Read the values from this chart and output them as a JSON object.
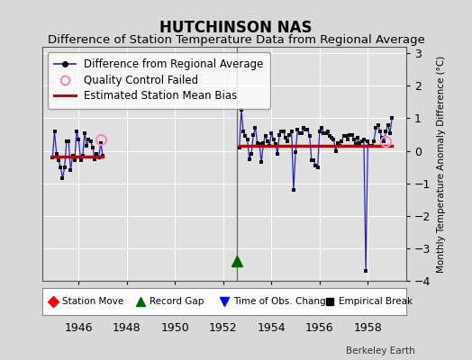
{
  "title": "HUTCHINSON NAS",
  "subtitle": "Difference of Station Temperature Data from Regional Average",
  "ylabel": "Monthly Temperature Anomaly Difference (°C)",
  "background_color": "#d8d8d8",
  "plot_bg_color": "#e0e0e0",
  "xlim": [
    1944.5,
    1959.58
  ],
  "ylim": [
    -4.0,
    3.2
  ],
  "yticks": [
    -4,
    -3,
    -2,
    -1,
    0,
    1,
    2,
    3
  ],
  "xticks": [
    1946,
    1948,
    1950,
    1952,
    1954,
    1956,
    1958
  ],
  "segment1_x": [
    1944.917,
    1945.0,
    1945.083,
    1945.167,
    1945.25,
    1945.333,
    1945.417,
    1945.5,
    1945.583,
    1945.667,
    1945.75,
    1945.833,
    1945.917,
    1946.0,
    1946.083,
    1946.167,
    1946.25,
    1946.333,
    1946.417,
    1946.5,
    1946.583,
    1946.667,
    1946.75,
    1946.833,
    1946.917,
    1947.0
  ],
  "segment1_y": [
    -0.2,
    0.6,
    -0.1,
    -0.3,
    -0.5,
    -0.85,
    -0.5,
    0.3,
    0.3,
    -0.6,
    -0.15,
    -0.3,
    0.6,
    0.35,
    -0.3,
    -0.15,
    0.55,
    0.15,
    0.35,
    0.3,
    0.1,
    -0.25,
    -0.1,
    -0.2,
    0.25,
    -0.15
  ],
  "segment1_bias": -0.18,
  "qc_failed_x1": [
    1946.917
  ],
  "qc_failed_y1": [
    0.35
  ],
  "gap_marker_x": 1952.583,
  "gap_marker_y": -3.4,
  "segment2_x": [
    1952.667,
    1952.75,
    1952.833,
    1952.917,
    1953.0,
    1953.083,
    1953.167,
    1953.25,
    1953.333,
    1953.417,
    1953.5,
    1953.583,
    1953.667,
    1953.75,
    1953.833,
    1953.917,
    1954.0,
    1954.083,
    1954.167,
    1954.25,
    1954.333,
    1954.417,
    1954.5,
    1954.583,
    1954.667,
    1954.75,
    1954.833,
    1954.917,
    1955.0,
    1955.083,
    1955.167,
    1955.25,
    1955.333,
    1955.417,
    1955.5,
    1955.583,
    1955.667,
    1955.75,
    1955.833,
    1955.917,
    1956.0,
    1956.083,
    1956.167,
    1956.25,
    1956.333,
    1956.417,
    1956.5,
    1956.583,
    1956.667,
    1956.75,
    1956.833,
    1956.917,
    1957.0,
    1957.083,
    1957.167,
    1957.25,
    1957.333,
    1957.417,
    1957.5,
    1957.583,
    1957.667,
    1957.75,
    1957.833,
    1957.917,
    1958.0,
    1958.083,
    1958.167,
    1958.25,
    1958.333,
    1958.417,
    1958.5,
    1958.583,
    1958.667,
    1958.75,
    1958.833,
    1958.917,
    1959.0
  ],
  "segment2_y": [
    0.1,
    1.25,
    0.6,
    0.45,
    0.35,
    -0.25,
    -0.1,
    0.5,
    0.7,
    0.25,
    0.2,
    -0.35,
    0.25,
    0.45,
    0.3,
    0.15,
    0.55,
    0.35,
    0.2,
    -0.1,
    0.5,
    0.6,
    0.6,
    0.4,
    0.3,
    0.5,
    0.6,
    -1.2,
    -0.05,
    0.65,
    0.55,
    0.55,
    0.7,
    0.65,
    0.65,
    0.45,
    -0.3,
    -0.3,
    -0.45,
    -0.5,
    0.6,
    0.7,
    0.55,
    0.55,
    0.6,
    0.45,
    0.4,
    0.35,
    0.0,
    0.25,
    0.15,
    0.3,
    0.45,
    0.45,
    0.35,
    0.5,
    0.5,
    0.35,
    0.2,
    0.4,
    0.25,
    0.3,
    0.35,
    -3.7,
    0.3,
    0.15,
    0.15,
    0.3,
    0.7,
    0.8,
    0.6,
    0.4,
    0.3,
    0.6,
    0.8,
    0.55,
    1.0
  ],
  "segment2_bias": 0.15,
  "qc_failed_x2": [
    1958.75
  ],
  "qc_failed_y2": [
    0.3
  ],
  "vertical_line_x": 1952.583,
  "line_color": "#2222cc",
  "bias_color": "#cc0000",
  "marker_color": "#111111",
  "qc_color": "#ff88bb",
  "gap_color": "#006600",
  "legend_fontsize": 8.5,
  "title_fontsize": 12,
  "subtitle_fontsize": 9.5,
  "tick_fontsize": 9,
  "watermark": "Berkeley Earth"
}
